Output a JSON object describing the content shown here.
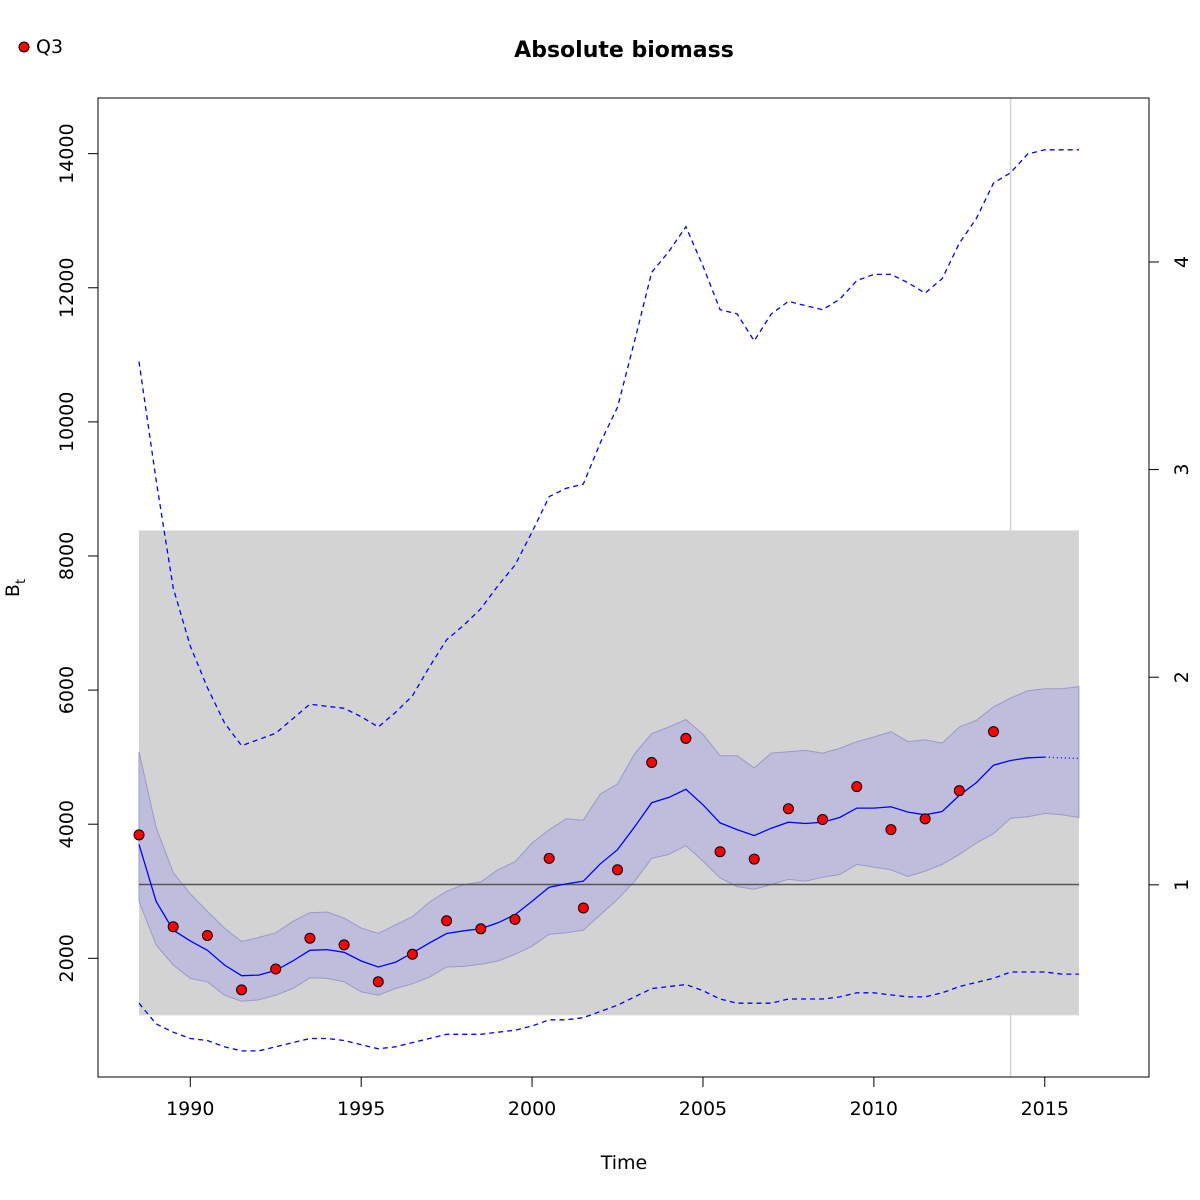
{
  "chart_data": {
    "type": "line",
    "title": "Absolute biomass",
    "xlabel": "Time",
    "ylabel": "B",
    "ylabel_subscript": "t",
    "xlim": [
      1987.3,
      2018.05
    ],
    "ylim": [
      230,
      14830
    ],
    "y2lim": [
      0.0744,
      4.7897
    ],
    "x_ticks": [
      1990,
      1995,
      2000,
      2005,
      2010,
      2015
    ],
    "y_ticks": [
      2000,
      4000,
      6000,
      8000,
      10000,
      12000,
      14000
    ],
    "y2_ticks": [
      1,
      2,
      3,
      4
    ],
    "legend": {
      "position": "top-left",
      "entries": [
        {
          "label": "Q3",
          "color": "#ff0000"
        }
      ]
    },
    "colors": {
      "estimate": "#0000ff",
      "ci_band": "#bbbbdd",
      "ci_band_edge": "#9999cc",
      "prior_box": "#d3d3d3",
      "reference_line": "#555555",
      "vertical_marker": "#d3d3d3",
      "points": "#ff0000"
    },
    "reference_line_y": 3100,
    "vertical_marker_x": 2014,
    "prior_box": {
      "x": [
        1988.5,
        2016.0
      ],
      "y": [
        1150,
        8380
      ]
    },
    "index_points": {
      "name": "Q3",
      "x": [
        1988.5,
        1989.5,
        1990.5,
        1991.5,
        1992.5,
        1993.5,
        1994.5,
        1995.5,
        1996.5,
        1997.5,
        1998.5,
        1999.5,
        2000.5,
        2001.5,
        2002.5,
        2003.5,
        2004.5,
        2005.5,
        2006.5,
        2007.5,
        2008.5,
        2009.5,
        2010.5,
        2011.5,
        2012.5,
        2013.5
      ],
      "y": [
        3840,
        2470,
        2340,
        1530,
        1840,
        2300,
        2200,
        1650,
        2060,
        2560,
        2440,
        2580,
        3490,
        2750,
        3320,
        4920,
        5280,
        3590,
        3480,
        4230,
        4070,
        4560,
        3920,
        4080,
        4500,
        5380
      ]
    },
    "estimate": {
      "x": [
        1988.5,
        1989.0,
        1989.5,
        1990.0,
        1990.5,
        1991.0,
        1991.5,
        1992.0,
        1992.5,
        1993.0,
        1993.5,
        1994.0,
        1994.5,
        1995.0,
        1995.5,
        1996.0,
        1996.5,
        1997.0,
        1997.5,
        1998.0,
        1998.5,
        1999.0,
        1999.5,
        2000.0,
        2000.5,
        2001.0,
        2001.5,
        2002.0,
        2002.5,
        2003.0,
        2003.5,
        2004.0,
        2004.5,
        2005.0,
        2005.5,
        2006.0,
        2006.5,
        2007.0,
        2007.5,
        2008.0,
        2008.5,
        2009.0,
        2009.5,
        2010.0,
        2010.5,
        2011.0,
        2011.5,
        2012.0,
        2012.5,
        2013.0,
        2013.5,
        2014.0,
        2014.5,
        2015.0
      ],
      "y": [
        3700,
        2850,
        2420,
        2260,
        2120,
        1900,
        1740,
        1750,
        1820,
        1960,
        2120,
        2130,
        2090,
        1960,
        1870,
        1940,
        2080,
        2230,
        2370,
        2410,
        2440,
        2530,
        2650,
        2850,
        3060,
        3110,
        3150,
        3410,
        3620,
        3960,
        4320,
        4400,
        4520,
        4290,
        4020,
        3920,
        3830,
        3940,
        4030,
        4010,
        4030,
        4100,
        4240,
        4240,
        4260,
        4180,
        4140,
        4190,
        4430,
        4620,
        4880,
        4950,
        4990,
        5000
      ]
    },
    "projection": {
      "x": [
        2015.0,
        2016.0
      ],
      "y": [
        5000,
        4980
      ]
    },
    "ci_upper": {
      "x": [
        1988.5,
        1989.0,
        1989.5,
        1990.0,
        1990.5,
        1991.0,
        1991.5,
        1992.0,
        1992.5,
        1993.0,
        1993.5,
        1994.0,
        1994.5,
        1995.0,
        1995.5,
        1996.0,
        1996.5,
        1997.0,
        1997.5,
        1998.0,
        1998.5,
        1999.0,
        1999.5,
        2000.0,
        2000.5,
        2001.0,
        2001.5,
        2002.0,
        2002.5,
        2003.0,
        2003.5,
        2004.0,
        2004.5,
        2005.0,
        2005.5,
        2006.0,
        2006.5,
        2007.0,
        2007.5,
        2008.0,
        2008.5,
        2009.0,
        2009.5,
        2010.0,
        2010.5,
        2011.0,
        2011.5,
        2012.0,
        2012.5,
        2013.0,
        2013.5,
        2014.0,
        2014.5,
        2015.0,
        2015.5,
        2016.0
      ],
      "y": [
        5080,
        3950,
        3280,
        2960,
        2700,
        2450,
        2250,
        2310,
        2380,
        2550,
        2680,
        2690,
        2600,
        2450,
        2370,
        2500,
        2620,
        2840,
        3000,
        3100,
        3140,
        3320,
        3440,
        3720,
        3920,
        4080,
        4060,
        4450,
        4600,
        5050,
        5350,
        5450,
        5560,
        5340,
        5020,
        5020,
        4840,
        5060,
        5080,
        5100,
        5060,
        5130,
        5230,
        5300,
        5380,
        5230,
        5260,
        5210,
        5450,
        5550,
        5750,
        5880,
        5990,
        6020,
        6020,
        6050
      ]
    },
    "ci_lower": {
      "x": [
        1988.5,
        1989.0,
        1989.5,
        1990.0,
        1990.5,
        1991.0,
        1991.5,
        1992.0,
        1992.5,
        1993.0,
        1993.5,
        1994.0,
        1994.5,
        1995.0,
        1995.5,
        1996.0,
        1996.5,
        1997.0,
        1997.5,
        1998.0,
        1998.5,
        1999.0,
        1999.5,
        2000.0,
        2000.5,
        2001.0,
        2001.5,
        2002.0,
        2002.5,
        2003.0,
        2003.5,
        2004.0,
        2004.5,
        2005.0,
        2005.5,
        2006.0,
        2006.5,
        2007.0,
        2007.5,
        2008.0,
        2008.5,
        2009.0,
        2009.5,
        2010.0,
        2010.5,
        2011.0,
        2011.5,
        2012.0,
        2012.5,
        2013.0,
        2013.5,
        2014.0,
        2014.5,
        2015.0,
        2015.5,
        2016.0
      ],
      "y": [
        2850,
        2200,
        1900,
        1700,
        1650,
        1450,
        1360,
        1380,
        1450,
        1550,
        1710,
        1700,
        1650,
        1500,
        1450,
        1550,
        1620,
        1720,
        1870,
        1880,
        1910,
        1960,
        2060,
        2180,
        2360,
        2380,
        2420,
        2650,
        2880,
        3150,
        3490,
        3550,
        3680,
        3450,
        3200,
        3070,
        3030,
        3100,
        3180,
        3150,
        3210,
        3250,
        3400,
        3360,
        3320,
        3220,
        3300,
        3400,
        3550,
        3720,
        3860,
        4090,
        4110,
        4160,
        4140,
        4100
      ]
    },
    "secondary_upper": {
      "x": [
        1988.5,
        1989.0,
        1989.5,
        1990.0,
        1990.5,
        1991.0,
        1991.5,
        1992.0,
        1992.5,
        1993.0,
        1993.5,
        1994.0,
        1994.5,
        1995.0,
        1995.5,
        1996.0,
        1996.5,
        1997.0,
        1997.5,
        1998.0,
        1998.5,
        1999.0,
        1999.5,
        2000.0,
        2000.5,
        2001.0,
        2001.5,
        2002.0,
        2002.5,
        2003.0,
        2003.5,
        2004.0,
        2004.5,
        2005.0,
        2005.5,
        2006.0,
        2006.5,
        2007.0,
        2007.5,
        2008.0,
        2008.5,
        2009.0,
        2009.5,
        2010.0,
        2010.5,
        2011.0,
        2011.5,
        2012.0,
        2012.5,
        2013.0,
        2013.5,
        2014.0,
        2014.5,
        2015.0,
        2015.5,
        2016.0
      ],
      "y": [
        3.52,
        2.95,
        2.43,
        2.15,
        1.95,
        1.78,
        1.67,
        1.7,
        1.73,
        1.8,
        1.87,
        1.86,
        1.85,
        1.81,
        1.76,
        1.83,
        1.91,
        2.05,
        2.18,
        2.25,
        2.33,
        2.44,
        2.54,
        2.7,
        2.87,
        2.91,
        2.93,
        3.13,
        3.3,
        3.62,
        3.95,
        4.05,
        4.17,
        3.98,
        3.77,
        3.75,
        3.62,
        3.75,
        3.81,
        3.79,
        3.77,
        3.82,
        3.91,
        3.94,
        3.94,
        3.9,
        3.85,
        3.92,
        4.09,
        4.21,
        4.38,
        4.43,
        4.52,
        4.54,
        4.54,
        4.54
      ]
    },
    "secondary_lower": {
      "x": [
        1988.5,
        1989.0,
        1989.5,
        1990.0,
        1990.5,
        1991.0,
        1991.5,
        1992.0,
        1992.5,
        1993.0,
        1993.5,
        1994.0,
        1994.5,
        1995.0,
        1995.5,
        1996.0,
        1996.5,
        1997.0,
        1997.5,
        1998.0,
        1998.5,
        1999.0,
        1999.5,
        2000.0,
        2000.5,
        2001.0,
        2001.5,
        2002.0,
        2002.5,
        2003.0,
        2003.5,
        2004.0,
        2004.5,
        2005.0,
        2005.5,
        2006.0,
        2006.5,
        2007.0,
        2007.5,
        2008.0,
        2008.5,
        2009.0,
        2009.5,
        2010.0,
        2010.5,
        2011.0,
        2011.5,
        2012.0,
        2012.5,
        2013.0,
        2013.5,
        2014.0,
        2014.5,
        2015.0,
        2015.5,
        2016.0
      ],
      "y": [
        0.43,
        0.33,
        0.29,
        0.26,
        0.25,
        0.22,
        0.2,
        0.2,
        0.22,
        0.24,
        0.26,
        0.26,
        0.25,
        0.23,
        0.21,
        0.22,
        0.24,
        0.26,
        0.28,
        0.28,
        0.28,
        0.29,
        0.3,
        0.32,
        0.35,
        0.35,
        0.36,
        0.39,
        0.42,
        0.46,
        0.5,
        0.51,
        0.52,
        0.49,
        0.45,
        0.43,
        0.43,
        0.43,
        0.45,
        0.45,
        0.45,
        0.46,
        0.48,
        0.48,
        0.47,
        0.46,
        0.46,
        0.48,
        0.51,
        0.53,
        0.55,
        0.58,
        0.58,
        0.58,
        0.57,
        0.57
      ]
    }
  }
}
